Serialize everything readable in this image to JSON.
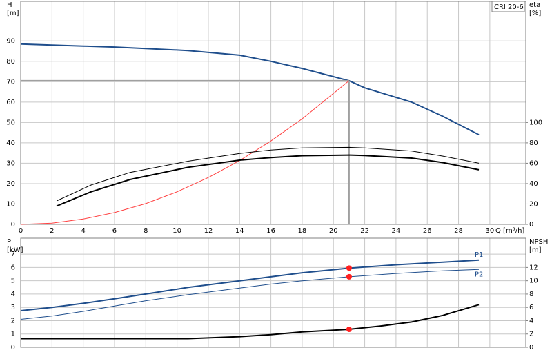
{
  "chart_data": [
    {
      "type": "line",
      "model": "CRI 20-6",
      "y_label": "H",
      "y_unit": "[m]",
      "y2_label": "eta",
      "y2_unit": "[%]",
      "x_label": "Q [m³/h]",
      "xlim": [
        0,
        32.3
      ],
      "xticks": [
        0,
        2,
        4,
        6,
        8,
        10,
        12,
        14,
        16,
        18,
        20,
        22,
        24,
        26,
        28,
        30
      ],
      "ylim": [
        0,
        109.4
      ],
      "yticks": [
        0,
        10,
        20,
        30,
        40,
        50,
        60,
        70,
        80,
        90
      ],
      "y2lim": [
        0,
        218.8
      ],
      "y2ticks": [
        0,
        20,
        40,
        60,
        80,
        100
      ],
      "grid": true,
      "duty_q": 21,
      "series": [
        {
          "color": "#1f4e8c",
          "linewidth": 2,
          "duty_color": "#ffd700",
          "guide": true,
          "x": [
            0,
            2,
            4,
            6,
            8,
            10.7,
            14,
            16,
            18,
            21,
            22,
            25,
            27,
            29.3
          ],
          "values": [
            88.5,
            88,
            87.5,
            87,
            86.3,
            85.3,
            83,
            80,
            76.5,
            70.5,
            67,
            60,
            53,
            44
          ]
        },
        {
          "color": "#ff4040",
          "linewidth": 1,
          "x": [
            0,
            2,
            4,
            6,
            8,
            10,
            12,
            14,
            16,
            18,
            21
          ],
          "values": [
            0,
            0.6,
            2.6,
            5.8,
            10.2,
            16,
            23,
            31.3,
            40.9,
            51.8,
            70.5
          ]
        },
        {
          "color": "#000000",
          "linewidth": 1,
          "axis": "y2",
          "duty_color": "#ff2020",
          "x": [
            2.3,
            4.5,
            7,
            10.7,
            14,
            16,
            18,
            21,
            22,
            25,
            27,
            29.3
          ],
          "values": [
            23,
            38.6,
            51,
            62,
            69.6,
            73,
            75,
            75.6,
            75,
            72,
            67,
            60
          ]
        },
        {
          "color": "#000000",
          "linewidth": 2,
          "axis": "y2",
          "duty_color": "#ff2020",
          "x": [
            2.3,
            4.5,
            7,
            10.7,
            14,
            16,
            18,
            21,
            22,
            25,
            27,
            29.3
          ],
          "values": [
            18,
            32,
            44,
            56,
            63,
            65.6,
            67.4,
            68,
            67.6,
            65,
            60.6,
            53.6
          ]
        }
      ]
    },
    {
      "type": "line",
      "y_label": "P",
      "y_unit": "[kW]",
      "y2_label": "NPSH",
      "y2_unit": "[m]",
      "xlim": [
        0,
        32.3
      ],
      "xticks": [
        0,
        2,
        4,
        6,
        8,
        10,
        12,
        14,
        16,
        18,
        20,
        22,
        24,
        26,
        28,
        30
      ],
      "ylim": [
        0,
        8.2
      ],
      "yticks": [
        0,
        1,
        2,
        3,
        4,
        5,
        6,
        7
      ],
      "y2lim": [
        0,
        16.4
      ],
      "y2ticks": [
        0,
        2,
        4,
        6,
        8,
        10,
        12
      ],
      "grid": true,
      "duty_q": 21,
      "series": [
        {
          "name": "P1",
          "color": "#1f4e8c",
          "linewidth": 2,
          "duty_color": "#ff2020",
          "x": [
            0,
            2,
            4,
            6,
            8,
            10.7,
            14,
            16,
            18,
            21,
            24,
            27,
            29.3
          ],
          "values": [
            2.75,
            3.0,
            3.3,
            3.65,
            4.0,
            4.5,
            5.0,
            5.3,
            5.6,
            5.95,
            6.2,
            6.4,
            6.55
          ]
        },
        {
          "name": "P2",
          "color": "#1f4e8c",
          "linewidth": 1,
          "duty_color": "#ff2020",
          "x": [
            0,
            2,
            4,
            6,
            8,
            10.7,
            14,
            16,
            18,
            21,
            24,
            27,
            29.3
          ],
          "values": [
            2.1,
            2.35,
            2.7,
            3.1,
            3.5,
            3.95,
            4.45,
            4.75,
            5.0,
            5.3,
            5.55,
            5.75,
            5.85
          ]
        },
        {
          "color": "#000000",
          "linewidth": 2,
          "axis": "y2",
          "duty_color": "#ff2020",
          "x": [
            0,
            10.7,
            14,
            16,
            18,
            21,
            23,
            25,
            27,
            29.3
          ],
          "values": [
            1.3,
            1.3,
            1.6,
            1.9,
            2.3,
            2.7,
            3.2,
            3.8,
            4.8,
            6.4
          ]
        }
      ]
    }
  ]
}
